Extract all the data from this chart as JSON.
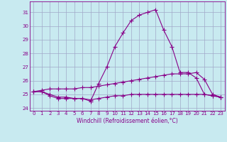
{
  "title": "",
  "xlabel": "Windchill (Refroidissement éolien,°C)",
  "ylabel": "",
  "bg_color": "#c8eaf0",
  "grid_color": "#a0a8c8",
  "line_color": "#880088",
  "x": [
    0,
    1,
    2,
    3,
    4,
    5,
    6,
    7,
    8,
    9,
    10,
    11,
    12,
    13,
    14,
    15,
    16,
    17,
    18,
    19,
    20,
    21,
    22,
    23
  ],
  "y_main": [
    25.2,
    25.2,
    25.0,
    24.8,
    24.8,
    24.7,
    24.7,
    24.5,
    25.8,
    27.0,
    28.5,
    29.5,
    30.4,
    30.8,
    31.0,
    31.2,
    29.7,
    28.5,
    26.6,
    26.6,
    26.2,
    25.0,
    24.9,
    24.8
  ],
  "y_line2": [
    25.2,
    25.3,
    25.4,
    25.4,
    25.4,
    25.4,
    25.5,
    25.5,
    25.6,
    25.7,
    25.8,
    25.9,
    26.0,
    26.1,
    26.2,
    26.3,
    26.4,
    26.5,
    26.5,
    26.5,
    26.6,
    26.1,
    25.0,
    24.8
  ],
  "y_line3": [
    25.2,
    25.2,
    24.9,
    24.7,
    24.7,
    24.7,
    24.7,
    24.6,
    24.7,
    24.8,
    24.9,
    24.9,
    25.0,
    25.0,
    25.0,
    25.0,
    25.0,
    25.0,
    25.0,
    25.0,
    25.0,
    25.0,
    24.9,
    24.8
  ],
  "ylim": [
    23.8,
    31.8
  ],
  "yticks": [
    24,
    25,
    26,
    27,
    28,
    29,
    30,
    31
  ],
  "xlim": [
    -0.5,
    23.5
  ],
  "markersize": 2.0,
  "linewidth": 0.8
}
